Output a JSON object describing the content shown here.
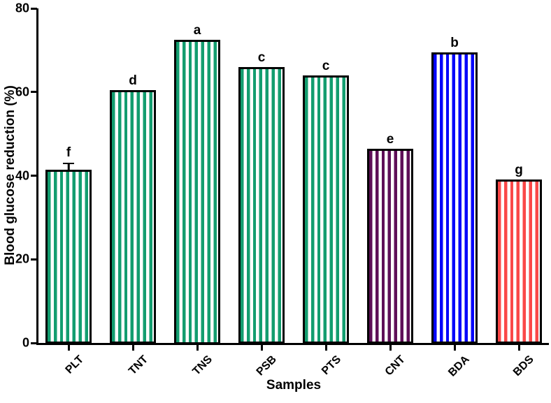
{
  "chart_data": {
    "type": "bar",
    "title": "",
    "xlabel": "Samples",
    "ylabel": "Blood glucose reduction (%)",
    "ylim": [
      0,
      80
    ],
    "yticks": [
      0,
      20,
      40,
      60,
      80
    ],
    "grid": false,
    "legend": "none",
    "categories": [
      "PLT",
      "TNT",
      "TNS",
      "PSB",
      "PTS",
      "CNT",
      "BDA",
      "BDS"
    ],
    "values": [
      41.5,
      60.5,
      72.5,
      66,
      64,
      46.5,
      69.5,
      39
    ],
    "errors": [
      1.2,
      0,
      0,
      0,
      0,
      0,
      0,
      0
    ],
    "significance_letters": [
      "f",
      "d",
      "a",
      "c",
      "c",
      "e",
      "b",
      "g"
    ],
    "bar_fill_pattern": "vertical-stripes",
    "bar_colors": [
      "#139d6f",
      "#139d6f",
      "#139d6f",
      "#139d6f",
      "#139d6f",
      "#5e0e57",
      "#0505fa",
      "#fa4848"
    ],
    "bar_border_color": "#000000",
    "axis_color": "#000000",
    "background_color": "#ffffff"
  }
}
